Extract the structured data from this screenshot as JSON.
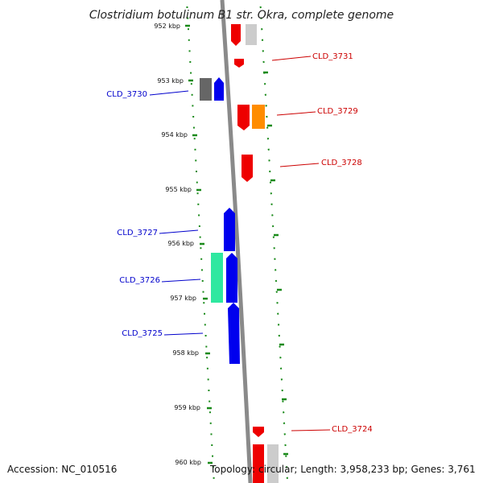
{
  "title": "Clostridium botulinum B1 str. Okra, complete genome",
  "footer": {
    "accession": "Accession: NC_010516",
    "topology": "Topology: circular; Length: 3,958,233 bp; Genes: 3,761"
  },
  "ticks": [
    "952 kbp",
    "953 kbp",
    "954 kbp",
    "955 kbp",
    "956 kbp",
    "957 kbp",
    "958 kbp",
    "959 kbp",
    "960 kbp"
  ],
  "genes_forward": [
    "CLD_3731",
    "CLD_3729",
    "CLD_3728",
    "CLD_3724"
  ],
  "genes_reverse": [
    "CLD_3730",
    "CLD_3727",
    "CLD_3726",
    "CLD_3725"
  ],
  "colors": {
    "forward_label": "#cc0000",
    "reverse_label": "#0000cc",
    "red_gene": "#ee0000",
    "blue_gene": "#0000ee",
    "orange_gene": "#ff8c00",
    "green_gene": "#2ee8a0",
    "grey_gene": "#777777",
    "light_gene": "#cccccc",
    "tick_green": "#1a8a1a",
    "backbone": "#8a8a8a"
  }
}
